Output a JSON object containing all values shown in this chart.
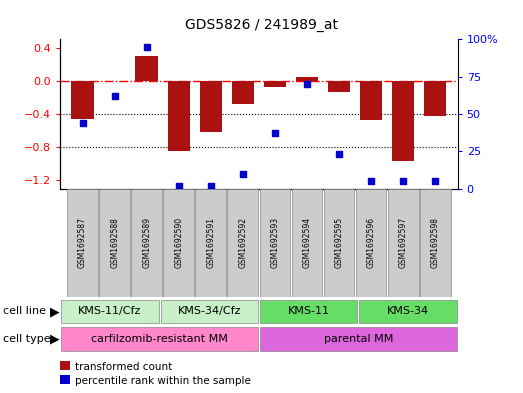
{
  "title": "GDS5826 / 241989_at",
  "samples": [
    "GSM1692587",
    "GSM1692588",
    "GSM1692589",
    "GSM1692590",
    "GSM1692591",
    "GSM1692592",
    "GSM1692593",
    "GSM1692594",
    "GSM1692595",
    "GSM1692596",
    "GSM1692597",
    "GSM1692598"
  ],
  "bar_values": [
    -0.46,
    0.0,
    0.3,
    -0.85,
    -0.62,
    -0.28,
    -0.07,
    0.04,
    -0.13,
    -0.47,
    -0.97,
    -0.43
  ],
  "scatter_values": [
    44,
    62,
    95,
    2,
    2,
    10,
    37,
    70,
    23,
    5,
    5,
    5
  ],
  "bar_color": "#AA1111",
  "scatter_color": "#0000CC",
  "ylim_left": [
    -1.3,
    0.5
  ],
  "ylim_right": [
    0,
    100
  ],
  "cell_line_groups": [
    {
      "label": "KMS-11/Cfz",
      "start": 0,
      "end": 3,
      "color": "#C8F0C8"
    },
    {
      "label": "KMS-34/Cfz",
      "start": 3,
      "end": 6,
      "color": "#C8F0C8"
    },
    {
      "label": "KMS-11",
      "start": 6,
      "end": 9,
      "color": "#66DD66"
    },
    {
      "label": "KMS-34",
      "start": 9,
      "end": 12,
      "color": "#66DD66"
    }
  ],
  "cell_type_groups": [
    {
      "label": "carfilzomib-resistant MM",
      "start": 0,
      "end": 6,
      "color": "#FF88CC"
    },
    {
      "label": "parental MM",
      "start": 6,
      "end": 12,
      "color": "#DD66DD"
    }
  ],
  "legend_bar_label": "transformed count",
  "legend_scatter_label": "percentile rank within the sample",
  "yticks_left": [
    0.4,
    0.0,
    -0.4,
    -0.8,
    -1.2
  ],
  "yticks_right": [
    100,
    75,
    50,
    25,
    0
  ],
  "hline_y": 0.0,
  "dotted_lines": [
    -0.4,
    -0.8
  ],
  "bar_width": 0.7
}
